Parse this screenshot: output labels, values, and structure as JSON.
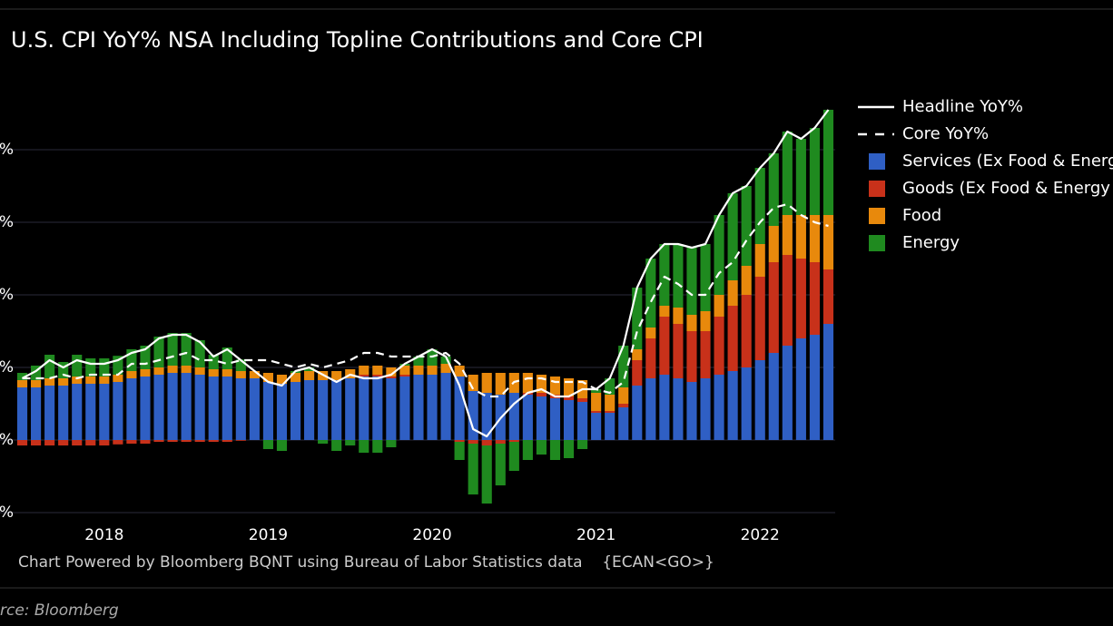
{
  "chart_data": {
    "type": "bar",
    "stacked": true,
    "title": "U.S. CPI YoY% NSA Including Topline Contributions and Core CPI",
    "footnote": "Chart Powered by Bloomberg BQNT using Bureau of Labor Statistics data    {ECAN<GO>}",
    "source": "rce: Bloomberg",
    "categories": [
      null,
      null,
      null,
      null,
      null,
      null,
      "2018",
      null,
      null,
      null,
      null,
      null,
      null,
      null,
      null,
      null,
      null,
      null,
      "2019",
      null,
      null,
      null,
      null,
      null,
      null,
      null,
      null,
      null,
      null,
      null,
      "2020",
      null,
      null,
      null,
      null,
      null,
      null,
      null,
      null,
      null,
      null,
      null,
      "2021",
      null,
      null,
      null,
      null,
      null,
      null,
      null,
      null,
      null,
      null,
      null,
      "2022",
      null,
      null,
      null,
      null,
      null
    ],
    "ylim": [
      -2.2,
      9.6
    ],
    "yticks": [
      {
        "value": -2,
        "label": "%"
      },
      {
        "value": 0,
        "label": "%"
      },
      {
        "value": 2,
        "label": "%"
      },
      {
        "value": 4,
        "label": "%"
      },
      {
        "value": 6,
        "label": "%"
      },
      {
        "value": 8,
        "label": "%"
      }
    ],
    "grid": true,
    "legend": "right",
    "series": [
      {
        "name": "Headline YoY%",
        "type": "line",
        "dash": false,
        "color": "#ffffff",
        "values": [
          1.7,
          1.9,
          2.2,
          2.0,
          2.2,
          2.1,
          2.1,
          2.2,
          2.4,
          2.5,
          2.8,
          2.9,
          2.9,
          2.7,
          2.3,
          2.5,
          2.2,
          1.9,
          1.6,
          1.5,
          1.9,
          2.0,
          1.8,
          1.6,
          1.8,
          1.7,
          1.7,
          1.8,
          2.1,
          2.3,
          2.5,
          2.3,
          1.5,
          0.3,
          0.1,
          0.6,
          1.0,
          1.3,
          1.4,
          1.2,
          1.2,
          1.4,
          1.4,
          1.7,
          2.6,
          4.2,
          5.0,
          5.4,
          5.4,
          5.3,
          5.4,
          6.2,
          6.8,
          7.0,
          7.5,
          7.9,
          8.5,
          8.3,
          8.6,
          9.1
        ]
      },
      {
        "name": "Core YoY%",
        "type": "line",
        "dash": true,
        "color": "#ffffff",
        "values": [
          1.7,
          1.7,
          1.7,
          1.8,
          1.7,
          1.8,
          1.8,
          1.8,
          2.1,
          2.1,
          2.2,
          2.3,
          2.4,
          2.2,
          2.2,
          2.1,
          2.2,
          2.2,
          2.2,
          2.1,
          2.0,
          2.1,
          2.0,
          2.1,
          2.2,
          2.4,
          2.4,
          2.3,
          2.3,
          2.3,
          2.3,
          2.4,
          2.1,
          1.4,
          1.2,
          1.2,
          1.6,
          1.7,
          1.7,
          1.6,
          1.6,
          1.6,
          1.4,
          1.3,
          1.6,
          3.0,
          3.8,
          4.5,
          4.3,
          4.0,
          4.0,
          4.6,
          4.9,
          5.5,
          6.0,
          6.4,
          6.5,
          6.2,
          6.0,
          5.9
        ]
      },
      {
        "name": "Services (Ex Food & Energ",
        "type": "bar",
        "color": "#2f5fc4",
        "values": [
          1.45,
          1.45,
          1.5,
          1.5,
          1.55,
          1.55,
          1.55,
          1.6,
          1.7,
          1.75,
          1.8,
          1.85,
          1.85,
          1.8,
          1.75,
          1.75,
          1.7,
          1.7,
          1.6,
          1.55,
          1.6,
          1.65,
          1.65,
          1.65,
          1.7,
          1.75,
          1.75,
          1.7,
          1.75,
          1.8,
          1.8,
          1.85,
          1.75,
          1.35,
          1.3,
          1.25,
          1.3,
          1.25,
          1.2,
          1.15,
          1.1,
          1.05,
          0.75,
          0.75,
          0.9,
          1.5,
          1.7,
          1.8,
          1.7,
          1.6,
          1.7,
          1.8,
          1.9,
          2.0,
          2.2,
          2.4,
          2.6,
          2.8,
          2.9,
          3.2
        ]
      },
      {
        "name": "Goods (Ex Food & Energy",
        "type": "bar",
        "color": "#c8311a",
        "values": [
          -0.15,
          -0.15,
          -0.15,
          -0.15,
          -0.15,
          -0.15,
          -0.15,
          -0.12,
          -0.1,
          -0.1,
          -0.05,
          -0.05,
          -0.05,
          -0.05,
          -0.05,
          -0.05,
          -0.02,
          0,
          0,
          0,
          0,
          0,
          0,
          0,
          0,
          0.05,
          0.05,
          0.05,
          0.05,
          0,
          0,
          0,
          -0.05,
          -0.1,
          -0.15,
          -0.1,
          -0.05,
          0.05,
          0.1,
          0.1,
          0.1,
          0.1,
          0.05,
          0.05,
          0.1,
          0.7,
          1.1,
          1.6,
          1.5,
          1.4,
          1.3,
          1.6,
          1.8,
          2.0,
          2.3,
          2.5,
          2.5,
          2.2,
          2.0,
          1.5
        ]
      },
      {
        "name": "Food",
        "type": "bar",
        "color": "#e8890c",
        "values": [
          0.2,
          0.2,
          0.2,
          0.2,
          0.2,
          0.2,
          0.2,
          0.2,
          0.2,
          0.2,
          0.2,
          0.2,
          0.2,
          0.2,
          0.2,
          0.2,
          0.2,
          0.2,
          0.25,
          0.25,
          0.25,
          0.25,
          0.25,
          0.25,
          0.25,
          0.25,
          0.25,
          0.25,
          0.25,
          0.25,
          0.25,
          0.25,
          0.3,
          0.45,
          0.55,
          0.6,
          0.55,
          0.55,
          0.5,
          0.5,
          0.5,
          0.5,
          0.5,
          0.45,
          0.45,
          0.3,
          0.3,
          0.3,
          0.45,
          0.45,
          0.55,
          0.6,
          0.7,
          0.8,
          0.9,
          1.0,
          1.1,
          1.2,
          1.3,
          1.5
        ]
      },
      {
        "name": "Energy",
        "type": "bar",
        "color": "#1f8a1f",
        "values": [
          0.2,
          0.4,
          0.65,
          0.45,
          0.6,
          0.5,
          0.5,
          0.52,
          0.6,
          0.65,
          0.85,
          0.9,
          0.9,
          0.75,
          0.4,
          0.6,
          0.32,
          0,
          -0.25,
          -0.3,
          0.05,
          0.1,
          -0.1,
          -0.3,
          -0.15,
          -0.35,
          -0.35,
          -0.2,
          0.05,
          0.25,
          0.45,
          0.2,
          -0.5,
          -1.4,
          -1.6,
          -1.15,
          -0.8,
          -0.55,
          -0.4,
          -0.55,
          -0.5,
          -0.25,
          0.1,
          0.45,
          1.15,
          1.7,
          1.9,
          1.7,
          1.75,
          1.85,
          1.85,
          2.2,
          2.4,
          2.2,
          2.1,
          2.0,
          2.3,
          2.1,
          2.4,
          2.9
        ]
      }
    ]
  }
}
